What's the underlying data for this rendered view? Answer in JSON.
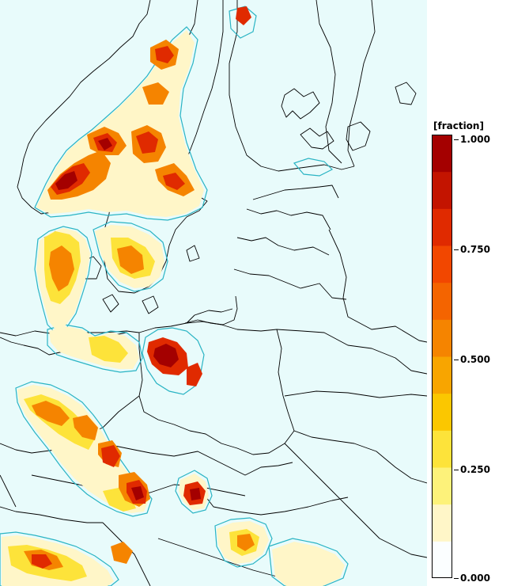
{
  "legend": {
    "title": "[fraction]",
    "ticks": [
      "1.000",
      "0.750",
      "0.500",
      "0.250",
      "0.000"
    ],
    "tick_values": [
      1.0,
      0.75,
      0.5,
      0.25,
      0.0
    ],
    "colors": [
      "#fbfeff",
      "#fff6c8",
      "#fdf27a",
      "#fde33a",
      "#fbc700",
      "#f8a500",
      "#f58400",
      "#f46400",
      "#f24700",
      "#e02a00",
      "#c31400",
      "#a40000"
    ]
  },
  "map": {
    "land_color": "#e8fbfb",
    "border_color": "#000000",
    "contour_color": "#2ab4c4"
  }
}
